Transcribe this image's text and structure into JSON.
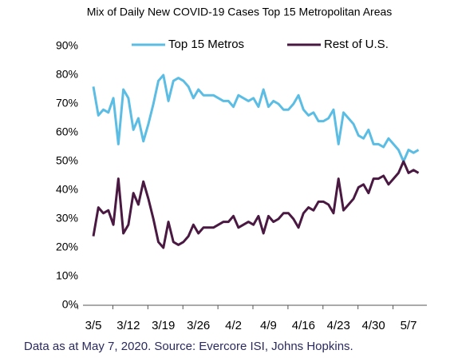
{
  "chart_data": {
    "type": "line",
    "title": "Mix of Daily New COVID-19 Cases Top 15 Metropolitan Areas",
    "note": "Data as at May 7, 2020. Source: Evercore ISI, Johns Hopkins.",
    "categories": [
      "3/5",
      null,
      null,
      null,
      null,
      null,
      null,
      "3/12",
      null,
      null,
      null,
      null,
      null,
      null,
      "3/19",
      null,
      null,
      null,
      null,
      null,
      null,
      "3/26",
      null,
      null,
      null,
      null,
      null,
      null,
      "4/2",
      null,
      null,
      null,
      null,
      null,
      null,
      "4/9",
      null,
      null,
      null,
      null,
      null,
      null,
      "4/16",
      null,
      null,
      null,
      null,
      null,
      null,
      "4/23",
      null,
      null,
      null,
      null,
      null,
      null,
      "4/30",
      null,
      null,
      null,
      null,
      null,
      null,
      "5/7",
      null,
      null
    ],
    "series": [
      {
        "name": "Top 15 Metros",
        "color": "#5bbde4",
        "values": [
          76,
          66,
          68,
          67,
          72,
          56,
          75,
          72,
          61,
          65,
          57,
          63,
          70,
          78,
          80,
          71,
          78,
          79,
          78,
          76,
          72,
          75,
          73,
          73,
          73,
          72,
          71,
          71,
          69,
          73,
          72,
          71,
          72,
          69,
          75,
          69,
          71,
          70,
          68,
          68,
          70,
          73,
          68,
          66,
          67,
          64,
          64,
          65,
          68,
          56,
          67,
          65,
          63,
          59,
          58,
          61,
          56,
          56,
          55,
          58,
          56,
          54,
          50,
          54,
          53,
          54
        ]
      },
      {
        "name": "Rest of U.S.",
        "color": "#4a1942",
        "values": [
          24,
          34,
          32,
          33,
          28,
          44,
          25,
          28,
          39,
          35,
          43,
          37,
          30,
          22,
          20,
          29,
          22,
          21,
          22,
          24,
          28,
          25,
          27,
          27,
          27,
          28,
          29,
          29,
          31,
          27,
          28,
          29,
          28,
          31,
          25,
          31,
          29,
          30,
          32,
          32,
          30,
          27,
          32,
          34,
          33,
          36,
          36,
          35,
          32,
          44,
          33,
          35,
          37,
          41,
          42,
          39,
          44,
          44,
          45,
          42,
          44,
          46,
          50,
          46,
          47,
          46
        ]
      }
    ],
    "ylim": [
      0,
      90
    ],
    "yticks": [
      {
        "value": 0,
        "label": "0%"
      },
      {
        "value": 10,
        "label": "10%"
      },
      {
        "value": 20,
        "label": "20%"
      },
      {
        "value": 30,
        "label": "30%"
      },
      {
        "value": 40,
        "label": "40%"
      },
      {
        "value": 50,
        "label": "50%"
      },
      {
        "value": 60,
        "label": "60%"
      },
      {
        "value": 70,
        "label": "70%"
      },
      {
        "value": 80,
        "label": "80%"
      },
      {
        "value": 90,
        "label": "90%"
      }
    ],
    "legend": "top"
  }
}
